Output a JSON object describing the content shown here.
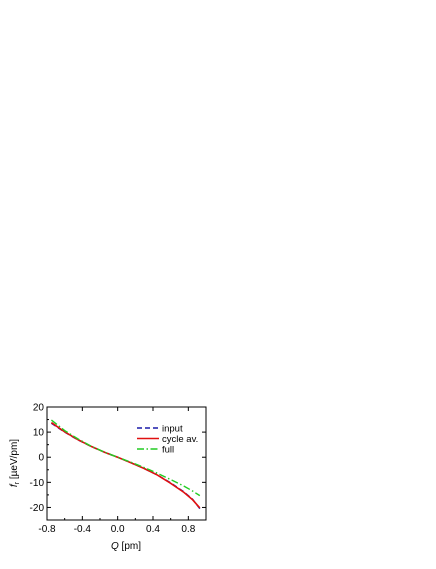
{
  "chart_data": {
    "type": "line",
    "title": "",
    "xlabel": {
      "symbol": "Q",
      "unit": " [pm]"
    },
    "ylabel": {
      "symbol": "f",
      "subscript": "r",
      "unit": " [µeV/pm]"
    },
    "xlim": [
      -0.8,
      1.0
    ],
    "ylim": [
      -25,
      20
    ],
    "xticks": [
      -0.8,
      -0.4,
      0.0,
      0.4,
      0.8
    ],
    "xtick_labels": [
      "-0.8",
      "-0.4",
      "0.0",
      "0.4",
      "0.8"
    ],
    "yticks": [
      -20,
      -10,
      0,
      10,
      20
    ],
    "ytick_labels": [
      "-20",
      "-10",
      "0",
      "10",
      "20"
    ],
    "grid": false,
    "legend_position": "top-right",
    "series": [
      {
        "name": "input",
        "color": "#1a1aa8",
        "style": "dashed",
        "x": [
          -0.75,
          -0.6,
          -0.45,
          -0.3,
          -0.15,
          0.0,
          0.15,
          0.3,
          0.45,
          0.6,
          0.75,
          0.85,
          0.93
        ],
        "y": [
          13.5,
          10.0,
          6.9,
          4.3,
          2.0,
          0.0,
          -2.2,
          -4.5,
          -7.1,
          -10.2,
          -13.8,
          -16.8,
          -20.5
        ]
      },
      {
        "name": "cycle av.",
        "color": "#e01010",
        "style": "solid",
        "x": [
          -0.75,
          -0.6,
          -0.45,
          -0.3,
          -0.15,
          0.0,
          0.15,
          0.3,
          0.45,
          0.6,
          0.75,
          0.85,
          0.93
        ],
        "y": [
          13.8,
          10.1,
          7.0,
          4.3,
          2.0,
          0.0,
          -2.2,
          -4.5,
          -7.1,
          -10.4,
          -14.0,
          -17.0,
          -20.2
        ]
      },
      {
        "name": "full",
        "color": "#22cc22",
        "style": "dashdot",
        "x": [
          -0.75,
          -0.6,
          -0.45,
          -0.3,
          -0.15,
          0.0,
          0.15,
          0.3,
          0.45,
          0.6,
          0.75,
          0.85,
          0.93
        ],
        "y": [
          14.8,
          10.6,
          7.3,
          4.4,
          2.0,
          0.0,
          -2.0,
          -4.1,
          -6.4,
          -8.9,
          -11.5,
          -13.5,
          -15.3
        ]
      }
    ]
  }
}
